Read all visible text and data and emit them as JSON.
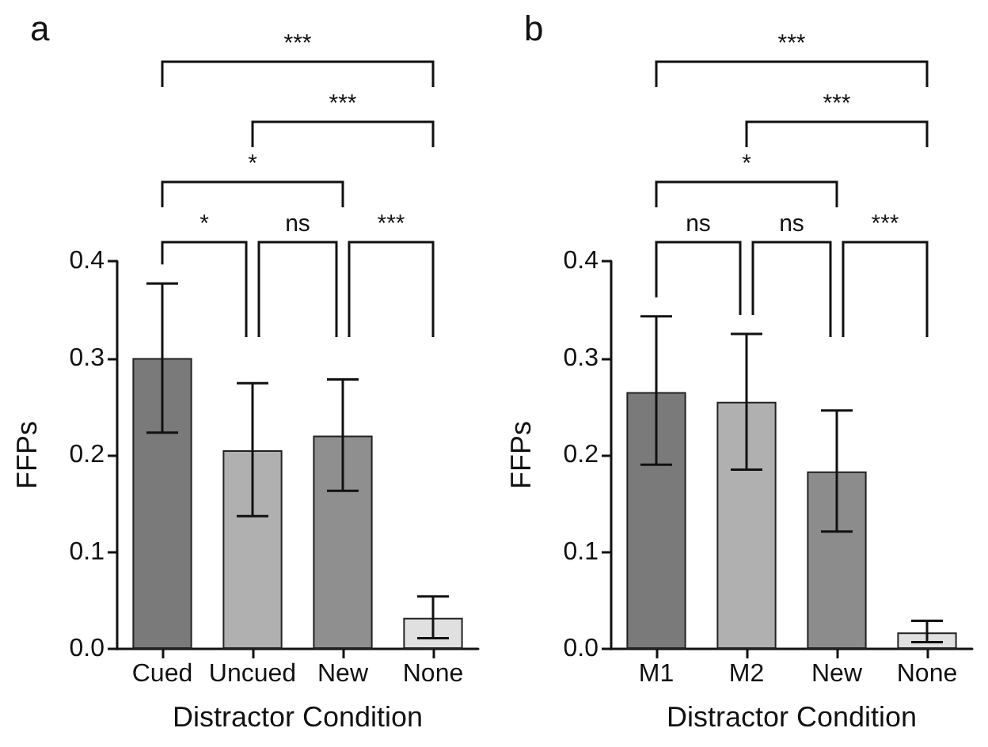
{
  "chart_data": [
    {
      "type": "bar",
      "title": "a",
      "xlabel": "Distractor Condition",
      "ylabel": "FFPs",
      "categories": [
        "Cued",
        "Uncued",
        "New",
        "None"
      ],
      "values": [
        0.3,
        0.205,
        0.22,
        0.032
      ],
      "colors": [
        "#7a7a7a",
        "#b0b0b0",
        "#8f8f8f",
        "#e0e0e0"
      ],
      "errors": [
        [
          0.223,
          0.377
        ],
        [
          0.137,
          0.274
        ],
        [
          0.163,
          0.278
        ],
        [
          0.011,
          0.054
        ]
      ],
      "ylim": [
        0,
        0.4
      ],
      "yticks": [
        {
          "value": 0,
          "label": "0.0"
        },
        0.1,
        0.2,
        0.3,
        0.4
      ],
      "annotations": [
        "***",
        "***",
        "*",
        "*",
        "ns",
        "***"
      ]
    },
    {
      "type": "bar",
      "title": "b",
      "xlabel": "Distractor Condition",
      "ylabel": "FFPs",
      "categories": [
        "M1",
        "M2",
        "New",
        "None"
      ],
      "values": [
        0.265,
        0.255,
        0.183,
        0.017
      ],
      "colors": [
        "#7a7a7a",
        "#b0b0b0",
        "#8c8c8c",
        "#e0e0e0"
      ],
      "errors": [
        [
          0.19,
          0.343
        ],
        [
          0.185,
          0.325
        ],
        [
          0.121,
          0.246
        ],
        [
          0.007,
          0.029
        ]
      ],
      "ylim": [
        0,
        0.4
      ],
      "yticks": [
        {
          "value": 0,
          "label": "0.0"
        },
        0.1,
        0.2,
        0.3,
        0.4
      ],
      "annotations": [
        "***",
        "***",
        "*",
        "ns",
        "ns",
        "***"
      ]
    }
  ]
}
